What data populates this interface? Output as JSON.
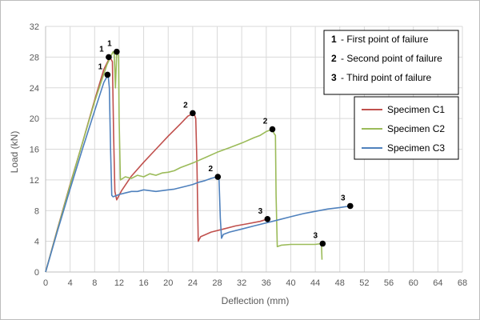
{
  "chart_data": {
    "type": "line",
    "title": "",
    "xlabel": "Deflection (mm)",
    "ylabel": "Load (kN)",
    "xlim": [
      0,
      68
    ],
    "ylim": [
      0,
      32
    ],
    "x_ticks": [
      "0",
      "4",
      "8",
      "12",
      "16",
      "20",
      "24",
      "28",
      "32",
      "36",
      "40",
      "44",
      "48",
      "52",
      "56",
      "60",
      "64",
      "68"
    ],
    "y_ticks": [
      "0",
      "4",
      "8",
      "12",
      "16",
      "20",
      "24",
      "28",
      "32"
    ],
    "grid": "vertical and horizontal major gridlines",
    "legend_position": "right",
    "series": [
      {
        "name": "Specimen C1",
        "color": "#c0504d",
        "points": [
          [
            0,
            0
          ],
          [
            2,
            5.8
          ],
          [
            4,
            11.4
          ],
          [
            6,
            16.8
          ],
          [
            8,
            22.4
          ],
          [
            9.5,
            26.4
          ],
          [
            10.5,
            28.0
          ],
          [
            10.9,
            27.4
          ],
          [
            11.1,
            18
          ],
          [
            11.3,
            10.5
          ],
          [
            11.6,
            9.4
          ],
          [
            12.4,
            10.6
          ],
          [
            14,
            12.5
          ],
          [
            16,
            14.3
          ],
          [
            18,
            16.0
          ],
          [
            20,
            17.7
          ],
          [
            22,
            19.3
          ],
          [
            23.2,
            20.3
          ],
          [
            24.2,
            20.7
          ],
          [
            24.5,
            20.0
          ],
          [
            24.7,
            14
          ],
          [
            24.9,
            4.0
          ],
          [
            25.3,
            4.6
          ],
          [
            27,
            5.2
          ],
          [
            29,
            5.6
          ],
          [
            31,
            6.0
          ],
          [
            33,
            6.3
          ],
          [
            35,
            6.6
          ],
          [
            36.2,
            6.9
          ]
        ],
        "markers": [
          {
            "label": "1",
            "x": 10.3,
            "y": 28.0
          },
          {
            "label": "2",
            "x": 24.0,
            "y": 20.7
          },
          {
            "label": "3",
            "x": 36.2,
            "y": 6.9
          }
        ]
      },
      {
        "name": "Specimen C2",
        "color": "#9bbb59",
        "points": [
          [
            0,
            0
          ],
          [
            2,
            5.7
          ],
          [
            4,
            11.3
          ],
          [
            6,
            16.8
          ],
          [
            8,
            22.2
          ],
          [
            10,
            27.0
          ],
          [
            11,
            28.7
          ],
          [
            11.2,
            28.4
          ],
          [
            11.4,
            24
          ],
          [
            11.6,
            28.6
          ],
          [
            11.9,
            28.2
          ],
          [
            12.0,
            20
          ],
          [
            12.2,
            12.0
          ],
          [
            13,
            12.4
          ],
          [
            14,
            12.2
          ],
          [
            15,
            12.6
          ],
          [
            16,
            12.4
          ],
          [
            17,
            12.8
          ],
          [
            18,
            12.6
          ],
          [
            19,
            12.9
          ],
          [
            20,
            13.0
          ],
          [
            21,
            13.2
          ],
          [
            22,
            13.6
          ],
          [
            24,
            14.2
          ],
          [
            26,
            14.9
          ],
          [
            28,
            15.6
          ],
          [
            30,
            16.2
          ],
          [
            32,
            16.8
          ],
          [
            34,
            17.5
          ],
          [
            35,
            17.8
          ],
          [
            36,
            18.3
          ],
          [
            37,
            18.6
          ],
          [
            37.3,
            18.0
          ],
          [
            37.5,
            17.8
          ],
          [
            37.6,
            10
          ],
          [
            37.8,
            3.3
          ],
          [
            38.5,
            3.5
          ],
          [
            40,
            3.6
          ],
          [
            42,
            3.6
          ],
          [
            44,
            3.6
          ],
          [
            45,
            3.7
          ],
          [
            45.1,
            1.6
          ]
        ],
        "markers": [
          {
            "label": "1",
            "x": 11.6,
            "y": 28.7
          },
          {
            "label": "2",
            "x": 37.0,
            "y": 18.6
          },
          {
            "label": "3",
            "x": 45.2,
            "y": 3.7
          }
        ]
      },
      {
        "name": "Specimen C3",
        "color": "#4f81bd",
        "points": [
          [
            0,
            0
          ],
          [
            2,
            5.5
          ],
          [
            4,
            10.8
          ],
          [
            6,
            16.0
          ],
          [
            8,
            21.0
          ],
          [
            9.5,
            24.7
          ],
          [
            10.2,
            25.7
          ],
          [
            10.4,
            24.0
          ],
          [
            10.6,
            16
          ],
          [
            10.8,
            10.0
          ],
          [
            11,
            9.8
          ],
          [
            12,
            10.1
          ],
          [
            13,
            10.3
          ],
          [
            14,
            10.5
          ],
          [
            15,
            10.5
          ],
          [
            16,
            10.7
          ],
          [
            17,
            10.6
          ],
          [
            18,
            10.5
          ],
          [
            19,
            10.6
          ],
          [
            20,
            10.7
          ],
          [
            21,
            10.8
          ],
          [
            22,
            11.0
          ],
          [
            23,
            11.2
          ],
          [
            24,
            11.4
          ],
          [
            25,
            11.7
          ],
          [
            26,
            11.9
          ],
          [
            27,
            12.2
          ],
          [
            28,
            12.4
          ],
          [
            28.3,
            12.0
          ],
          [
            28.5,
            7
          ],
          [
            28.7,
            4.4
          ],
          [
            29,
            4.9
          ],
          [
            30,
            5.2
          ],
          [
            32,
            5.6
          ],
          [
            34,
            6.0
          ],
          [
            36,
            6.4
          ],
          [
            38,
            6.8
          ],
          [
            40,
            7.2
          ],
          [
            42,
            7.6
          ],
          [
            44,
            7.9
          ],
          [
            46,
            8.2
          ],
          [
            48,
            8.4
          ],
          [
            49.7,
            8.6
          ]
        ],
        "markers": [
          {
            "label": "1",
            "x": 10.1,
            "y": 25.7
          },
          {
            "label": "2",
            "x": 28.1,
            "y": 12.4
          },
          {
            "label": "3",
            "x": 49.7,
            "y": 8.6
          }
        ]
      }
    ],
    "notes": [
      {
        "num": "1",
        "text": "- First point of failure"
      },
      {
        "num": "2",
        "text": "- Second point of failure"
      },
      {
        "num": "3",
        "text": "- Third point of failure"
      }
    ]
  }
}
